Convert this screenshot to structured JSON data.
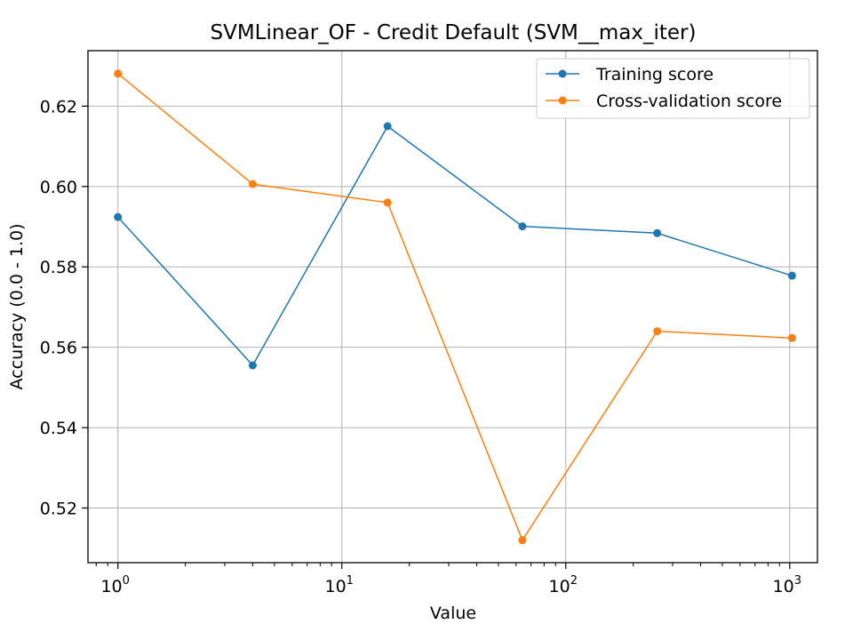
{
  "chart_data": {
    "type": "line",
    "title": "SVMLinear_OF - Credit Default (SVM__max_iter)",
    "xlabel": "Value",
    "ylabel": "Accuracy (0.0 - 1.0)",
    "x_scale": "log",
    "xlim": [
      0.735,
      1330
    ],
    "ylim": [
      0.5064,
      0.6338
    ],
    "grid": true,
    "legend_position": "top-right",
    "x": [
      1,
      4,
      16,
      64,
      256,
      1024
    ],
    "x_ticks": [
      {
        "value": 1,
        "base": "10",
        "exp": "0"
      },
      {
        "value": 10,
        "base": "10",
        "exp": "1"
      },
      {
        "value": 100,
        "base": "10",
        "exp": "2"
      },
      {
        "value": 1000,
        "base": "10",
        "exp": "3"
      }
    ],
    "y_ticks": [
      0.52,
      0.54,
      0.56,
      0.58,
      0.6,
      0.62
    ],
    "y_tick_labels": [
      "0.52",
      "0.54",
      "0.56",
      "0.58",
      "0.60",
      "0.62"
    ],
    "series": [
      {
        "name": "Training score",
        "color": "#1f77b4",
        "values": [
          0.5924,
          0.5555,
          0.615,
          0.5901,
          0.5884,
          0.5778
        ]
      },
      {
        "name": "Cross-validation score",
        "color": "#ff7f0e",
        "values": [
          0.6281,
          0.6006,
          0.596,
          0.512,
          0.564,
          0.5623
        ]
      }
    ]
  }
}
